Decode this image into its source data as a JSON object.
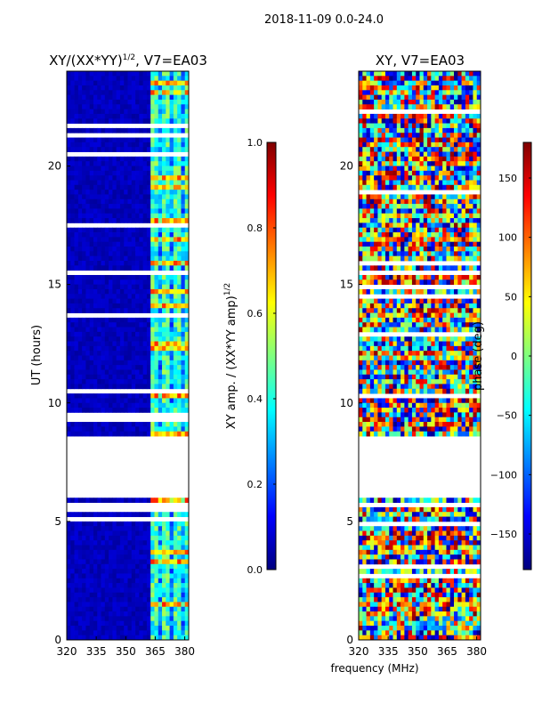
{
  "suptitle": "2018-11-09 0.0-24.0",
  "colors": {
    "background": "#ffffff",
    "axis": "#000000",
    "jet": [
      "#00007f",
      "#0000ff",
      "#007fff",
      "#00ffff",
      "#7fff7f",
      "#ffff00",
      "#ff7f00",
      "#ff0000",
      "#7f0000"
    ]
  },
  "chart_data": [
    {
      "type": "heatmap",
      "title_prefix": "XY/(XX*YY)",
      "title_exponent": "1/2",
      "title_suffix": ", V7=EA03",
      "xlabel": "",
      "ylabel": "UT (hours)",
      "xlim": [
        320,
        382
      ],
      "ylim": [
        0,
        24
      ],
      "xticks": [
        "320",
        "335",
        "350",
        "365",
        "380"
      ],
      "yticks": [
        "0",
        "5",
        "10",
        "15",
        "20"
      ],
      "data_gaps_hours": [
        [
          6.0,
          8.6
        ]
      ],
      "colorbar": {
        "label_prefix": "XY amp. / (XX*YY amp)",
        "label_exponent": "1/2",
        "range": [
          0.0,
          1.0
        ],
        "ticks": [
          "0.0",
          "0.2",
          "0.4",
          "0.6",
          "0.8",
          "1.0"
        ]
      }
    },
    {
      "type": "heatmap",
      "title": "XY, V7=EA03",
      "xlabel": "frequency (MHz)",
      "ylabel": "",
      "xlim": [
        320,
        382
      ],
      "ylim": [
        0,
        24
      ],
      "xticks": [
        "320",
        "335",
        "350",
        "365",
        "380"
      ],
      "yticks": [
        "0",
        "5",
        "10",
        "15",
        "20"
      ],
      "data_gaps_hours": [
        [
          6.0,
          8.6
        ]
      ],
      "colorbar": {
        "label": "phase (deg)",
        "range": [
          -180,
          180
        ],
        "ticks": [
          "−150",
          "−100",
          "−50",
          "0",
          "50",
          "100",
          "150"
        ]
      }
    }
  ]
}
